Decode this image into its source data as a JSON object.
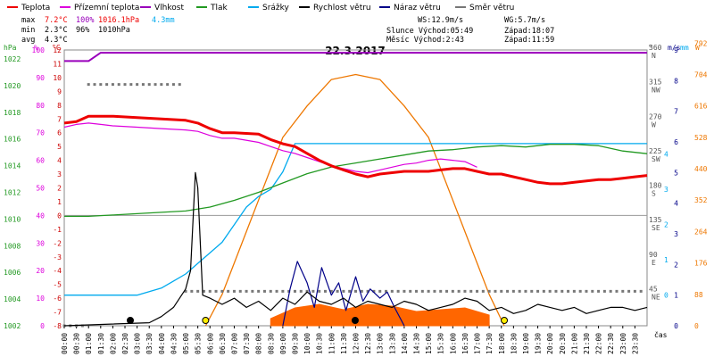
{
  "chart_data": {
    "type": "line",
    "title": "22.3.2017",
    "legend": [
      "Teplota",
      "Přízemní teplota",
      "Vlhkost",
      "Tlak",
      "Srážky",
      "Rychlost větru",
      "Náraz větru",
      "Směr větru"
    ],
    "colors": {
      "Teplota": "#ee0000",
      "Přízemní teplota": "#dd00dd",
      "Vlhkost": "#9900bb",
      "Tlak": "#229922",
      "Srážky": "#00aaee",
      "Rychlost větru": "#000000",
      "Náraz větru": "#000088",
      "Směr větru": "#777777",
      "Slunce": "#ee7700",
      "Solar": "#ff6600"
    },
    "stats": {
      "max": {
        "label": "max",
        "temp": "7.2°C",
        "hum": "100%",
        "press": "1016.1hPa",
        "rain": "4.3mm"
      },
      "min": {
        "label": "min",
        "temp": "2.3°C",
        "hum": "96%",
        "press": "1010hPa"
      },
      "avg": {
        "label": "avg",
        "temp": "4.3°C"
      }
    },
    "info": {
      "ws": "WS:12.9m/s",
      "wg": "WG:5.7m/s",
      "sun_rise": "Slunce Východ:05:49",
      "sun_set": "Západ:18:07",
      "moon_rise": "Měsíc  Východ:2:43",
      "moon_set": "Západ:11:59"
    },
    "axes": {
      "hpa_label": "hPa",
      "pct_label": "%",
      "c_label": "°C",
      "deg_label": "°",
      "ms_label": "m/s",
      "mm_label": "mm",
      "w_label": "W",
      "x_label": "čas",
      "pressure_ticks": [
        1022,
        1020,
        1018,
        1016,
        1014,
        1012,
        1010,
        1008,
        1006,
        1004,
        1002
      ],
      "pressure_range": [
        1002,
        1022.67
      ],
      "humidity_ticks": [
        100,
        90,
        80,
        70,
        60,
        50,
        40,
        30,
        20,
        10,
        0
      ],
      "temp_ticks": [
        12,
        11,
        10,
        9,
        8,
        7,
        6,
        5,
        4,
        3,
        2,
        1,
        0,
        -1,
        -2,
        -3,
        -4,
        -5,
        -6,
        -7,
        -8
      ],
      "temp_range": [
        -8,
        12
      ],
      "dir_ticks": [
        {
          "deg": 360,
          "lbl": "N"
        },
        {
          "deg": 315,
          "lbl": "NW"
        },
        {
          "deg": 270,
          "lbl": "W"
        },
        {
          "deg": 225,
          "lbl": "SW"
        },
        {
          "deg": 180,
          "lbl": "S"
        },
        {
          "deg": 135,
          "lbl": "SE"
        },
        {
          "deg": 90,
          "lbl": "E"
        },
        {
          "deg": 45,
          "lbl": "NE"
        }
      ],
      "ms_ticks": [
        9,
        8,
        7,
        6,
        5,
        4,
        3,
        2,
        1,
        0
      ],
      "ms_range": [
        0,
        9
      ],
      "mm_ticks": [
        4,
        3,
        2,
        1,
        0
      ],
      "w_ticks": [
        792,
        704,
        616,
        528,
        440,
        352,
        264,
        176,
        88,
        0
      ],
      "w_range": [
        0,
        792
      ],
      "time_ticks": [
        "00:00",
        "00:30",
        "01:00",
        "01:30",
        "02:00",
        "02:30",
        "03:00",
        "03:30",
        "04:00",
        "04:30",
        "05:00",
        "05:30",
        "06:00",
        "06:30",
        "07:00",
        "07:30",
        "08:00",
        "08:30",
        "09:00",
        "09:30",
        "10:00",
        "10:30",
        "11:00",
        "11:30",
        "12:00",
        "12:30",
        "13:00",
        "13:30",
        "14:00",
        "14:30",
        "15:00",
        "15:30",
        "16:00",
        "16:30",
        "17:00",
        "17:30",
        "18:00",
        "18:30",
        "19:00",
        "19:30",
        "20:00",
        "20:30",
        "21:00",
        "21:30",
        "22:00",
        "22:30",
        "23:00",
        "23:30"
      ]
    },
    "series": [
      {
        "name": "Teplota",
        "unit": "°C",
        "x": [
          0,
          0.5,
          1,
          1.5,
          2,
          3,
          4,
          5,
          5.5,
          6,
          6.5,
          7,
          8,
          8.5,
          9,
          9.5,
          10,
          10.5,
          11,
          11.5,
          12,
          12.5,
          13,
          13.5,
          14,
          14.5,
          15,
          15.5,
          16,
          16.5,
          17,
          17.5,
          18,
          18.5,
          19,
          19.5,
          20,
          20.5,
          21,
          21.5,
          22,
          22.5,
          23,
          23.5,
          24
        ],
        "y": [
          6.7,
          6.8,
          7.2,
          7.2,
          7.2,
          7.1,
          7.0,
          6.9,
          6.7,
          6.3,
          6.0,
          6.0,
          5.9,
          5.5,
          5.2,
          5.0,
          4.5,
          4.0,
          3.6,
          3.3,
          3.0,
          2.8,
          3.0,
          3.1,
          3.2,
          3.2,
          3.2,
          3.3,
          3.4,
          3.4,
          3.2,
          3.0,
          3.0,
          2.8,
          2.6,
          2.4,
          2.3,
          2.3,
          2.4,
          2.5,
          2.6,
          2.6,
          2.7,
          2.8,
          2.9
        ]
      },
      {
        "name": "Přízemní teplota",
        "unit": "°C",
        "x": [
          0,
          0.5,
          1,
          1.5,
          2,
          3,
          4,
          5,
          5.5,
          6,
          6.5,
          7,
          8,
          8.5,
          9,
          9.5,
          10,
          10.5,
          11,
          11.5,
          12,
          12.5,
          13,
          13.5,
          14,
          14.5,
          15,
          15.5,
          16,
          16.5,
          17
        ],
        "y": [
          6.4,
          6.6,
          6.7,
          6.6,
          6.5,
          6.4,
          6.3,
          6.2,
          6.1,
          5.8,
          5.6,
          5.6,
          5.3,
          5.0,
          4.7,
          4.5,
          4.2,
          3.9,
          3.6,
          3.4,
          3.2,
          3.1,
          3.3,
          3.5,
          3.7,
          3.8,
          4.0,
          4.1,
          4.0,
          3.9,
          3.5
        ]
      },
      {
        "name": "Vlhkost",
        "unit": "%",
        "x": [
          0,
          1,
          1.5,
          24
        ],
        "y": [
          96,
          96,
          99,
          99
        ]
      },
      {
        "name": "Tlak",
        "unit": "hPa",
        "x": [
          0,
          1,
          2,
          3,
          4,
          5,
          6,
          7,
          8,
          9,
          10,
          11,
          12,
          13,
          14,
          15,
          16,
          17,
          18,
          19,
          20,
          21,
          22,
          23,
          24
        ],
        "y": [
          1010.2,
          1010.2,
          1010.3,
          1010.4,
          1010.5,
          1010.6,
          1010.9,
          1011.4,
          1012.0,
          1012.7,
          1013.4,
          1013.9,
          1014.2,
          1014.5,
          1014.8,
          1015.1,
          1015.2,
          1015.4,
          1015.5,
          1015.4,
          1015.6,
          1015.6,
          1015.5,
          1015.1,
          1014.9
        ]
      },
      {
        "name": "Srážky",
        "unit": "mm",
        "x": [
          0,
          3,
          3.5,
          4,
          4.5,
          5,
          5.5,
          6,
          6.5,
          7,
          7.5,
          8,
          8.5,
          9,
          9.5,
          24
        ],
        "y": [
          0,
          0,
          0.1,
          0.2,
          0.4,
          0.6,
          0.9,
          1.2,
          1.5,
          2.0,
          2.5,
          2.8,
          3.0,
          3.5,
          4.3,
          4.3
        ]
      },
      {
        "name": "Rychlost větru",
        "unit": "m/s",
        "x": [
          0,
          3.5,
          4,
          4.5,
          5,
          5.2,
          5.4,
          5.5,
          5.7,
          6,
          6.5,
          7,
          7.5,
          8,
          8.5,
          9,
          9.5,
          10,
          10.5,
          11,
          11.5,
          12,
          12.5,
          13,
          13.5,
          14,
          14.5,
          15,
          15.5,
          16,
          16.5,
          17,
          17.5,
          18,
          18.5,
          19,
          19.5,
          20,
          20.5,
          21,
          21.5,
          22,
          22.5,
          23,
          23.5,
          24
        ],
        "y": [
          0,
          0.1,
          0.3,
          0.6,
          1.2,
          1.8,
          5.0,
          4.5,
          1.0,
          0.9,
          0.7,
          0.9,
          0.6,
          0.8,
          0.5,
          0.9,
          0.7,
          1.1,
          0.8,
          0.7,
          0.9,
          0.6,
          0.8,
          0.7,
          0.6,
          0.8,
          0.7,
          0.5,
          0.6,
          0.7,
          0.9,
          0.8,
          0.5,
          0.6,
          0.4,
          0.5,
          0.7,
          0.6,
          0.5,
          0.6,
          0.4,
          0.5,
          0.6,
          0.6,
          0.5,
          0.6
        ]
      },
      {
        "name": "Náraz větru",
        "unit": "m/s",
        "x": [
          9.0,
          9.3,
          9.6,
          10.0,
          10.3,
          10.6,
          11.0,
          11.3,
          11.6,
          12.0,
          12.3,
          12.6,
          13.0,
          13.3,
          13.6,
          14.0
        ],
        "y": [
          0,
          1.2,
          2.1,
          1.4,
          0.6,
          1.9,
          1.0,
          1.4,
          0.5,
          1.6,
          0.8,
          1.2,
          0.9,
          1.1,
          0.6,
          0
        ]
      },
      {
        "name": "Směr větru",
        "unit": "°",
        "x": [
          0,
          1,
          2,
          3,
          4,
          5,
          6,
          7,
          8,
          9,
          10,
          11,
          12,
          13,
          14,
          15,
          16,
          17,
          18,
          19,
          20,
          21,
          22,
          23
        ],
        "y": [
          0,
          315,
          315,
          315,
          315,
          45,
          45,
          45,
          45,
          45,
          45,
          45,
          45,
          45,
          45,
          45,
          45,
          45,
          45,
          45,
          45,
          45,
          45,
          45
        ]
      },
      {
        "name": "Slunce",
        "unit": "W",
        "x": [
          5.82,
          6.5,
          7,
          8,
          9,
          10,
          11,
          12,
          13,
          14,
          15,
          16,
          17,
          17.5,
          18.12
        ],
        "y": [
          0,
          88,
          176,
          352,
          528,
          616,
          690,
          704,
          690,
          616,
          528,
          352,
          176,
          88,
          0
        ]
      },
      {
        "name": "Solar",
        "unit": "W",
        "x": [
          8.5,
          9.5,
          10.5,
          11.5,
          12.5,
          13.5,
          14.5,
          15.5,
          16.5,
          17.5
        ],
        "y": [
          20,
          50,
          60,
          45,
          60,
          55,
          40,
          45,
          50,
          30
        ]
      }
    ]
  }
}
